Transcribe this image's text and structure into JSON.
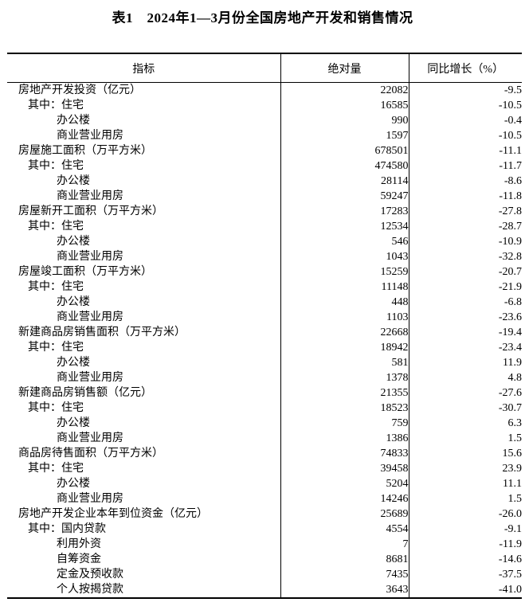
{
  "title": "表1　2024年1—3月份全国房地产开发和销售情况",
  "table": {
    "columns": [
      {
        "label": "指标"
      },
      {
        "label": "绝对量"
      },
      {
        "label": "同比增长（%）"
      }
    ],
    "rows": [
      {
        "indent": 1,
        "label": "房地产开发投资（亿元）",
        "absolute": "22082",
        "growth": "-9.5"
      },
      {
        "indent": 2,
        "label": "其中：住宅",
        "absolute": "16585",
        "growth": "-10.5"
      },
      {
        "indent": 3,
        "label": "办公楼",
        "absolute": "990",
        "growth": "-0.4"
      },
      {
        "indent": 3,
        "label": "商业营业用房",
        "absolute": "1597",
        "growth": "-10.5"
      },
      {
        "indent": 1,
        "label": "房屋施工面积（万平方米）",
        "absolute": "678501",
        "growth": "-11.1"
      },
      {
        "indent": 2,
        "label": "其中：住宅",
        "absolute": "474580",
        "growth": "-11.7"
      },
      {
        "indent": 3,
        "label": "办公楼",
        "absolute": "28114",
        "growth": "-8.6"
      },
      {
        "indent": 3,
        "label": "商业营业用房",
        "absolute": "59247",
        "growth": "-11.8"
      },
      {
        "indent": 1,
        "label": "房屋新开工面积（万平方米）",
        "absolute": "17283",
        "growth": "-27.8"
      },
      {
        "indent": 2,
        "label": "其中：住宅",
        "absolute": "12534",
        "growth": "-28.7"
      },
      {
        "indent": 3,
        "label": "办公楼",
        "absolute": "546",
        "growth": "-10.9"
      },
      {
        "indent": 3,
        "label": "商业营业用房",
        "absolute": "1043",
        "growth": "-32.8"
      },
      {
        "indent": 1,
        "label": "房屋竣工面积（万平方米）",
        "absolute": "15259",
        "growth": "-20.7"
      },
      {
        "indent": 2,
        "label": "其中：住宅",
        "absolute": "11148",
        "growth": "-21.9"
      },
      {
        "indent": 3,
        "label": "办公楼",
        "absolute": "448",
        "growth": "-6.8"
      },
      {
        "indent": 3,
        "label": "商业营业用房",
        "absolute": "1103",
        "growth": "-23.6"
      },
      {
        "indent": 1,
        "label": "新建商品房销售面积（万平方米）",
        "absolute": "22668",
        "growth": "-19.4"
      },
      {
        "indent": 2,
        "label": "其中：住宅",
        "absolute": "18942",
        "growth": "-23.4"
      },
      {
        "indent": 3,
        "label": "办公楼",
        "absolute": "581",
        "growth": "11.9"
      },
      {
        "indent": 3,
        "label": "商业营业用房",
        "absolute": "1378",
        "growth": "4.8"
      },
      {
        "indent": 1,
        "label": "新建商品房销售额（亿元）",
        "absolute": "21355",
        "growth": "-27.6"
      },
      {
        "indent": 2,
        "label": "其中：住宅",
        "absolute": "18523",
        "growth": "-30.7"
      },
      {
        "indent": 3,
        "label": "办公楼",
        "absolute": "759",
        "growth": "6.3"
      },
      {
        "indent": 3,
        "label": "商业营业用房",
        "absolute": "1386",
        "growth": "1.5"
      },
      {
        "indent": 1,
        "label": "商品房待售面积（万平方米）",
        "absolute": "74833",
        "growth": "15.6"
      },
      {
        "indent": 2,
        "label": "其中：住宅",
        "absolute": "39458",
        "growth": "23.9"
      },
      {
        "indent": 3,
        "label": "办公楼",
        "absolute": "5204",
        "growth": "11.1"
      },
      {
        "indent": 3,
        "label": "商业营业用房",
        "absolute": "14246",
        "growth": "1.5"
      },
      {
        "indent": 1,
        "label": "房地产开发企业本年到位资金（亿元）",
        "absolute": "25689",
        "growth": "-26.0"
      },
      {
        "indent": 2,
        "label": "其中：国内贷款",
        "absolute": "4554",
        "growth": "-9.1"
      },
      {
        "indent": 3,
        "label": "利用外资",
        "absolute": "7",
        "growth": "-11.9"
      },
      {
        "indent": 3,
        "label": "自筹资金",
        "absolute": "8681",
        "growth": "-14.6"
      },
      {
        "indent": 3,
        "label": "定金及预收款",
        "absolute": "7435",
        "growth": "-37.5"
      },
      {
        "indent": 3,
        "label": "个人按揭贷款",
        "absolute": "3643",
        "growth": "-41.0"
      }
    ]
  },
  "colors": {
    "text": "#000000",
    "background": "#ffffff",
    "border": "#000000"
  }
}
